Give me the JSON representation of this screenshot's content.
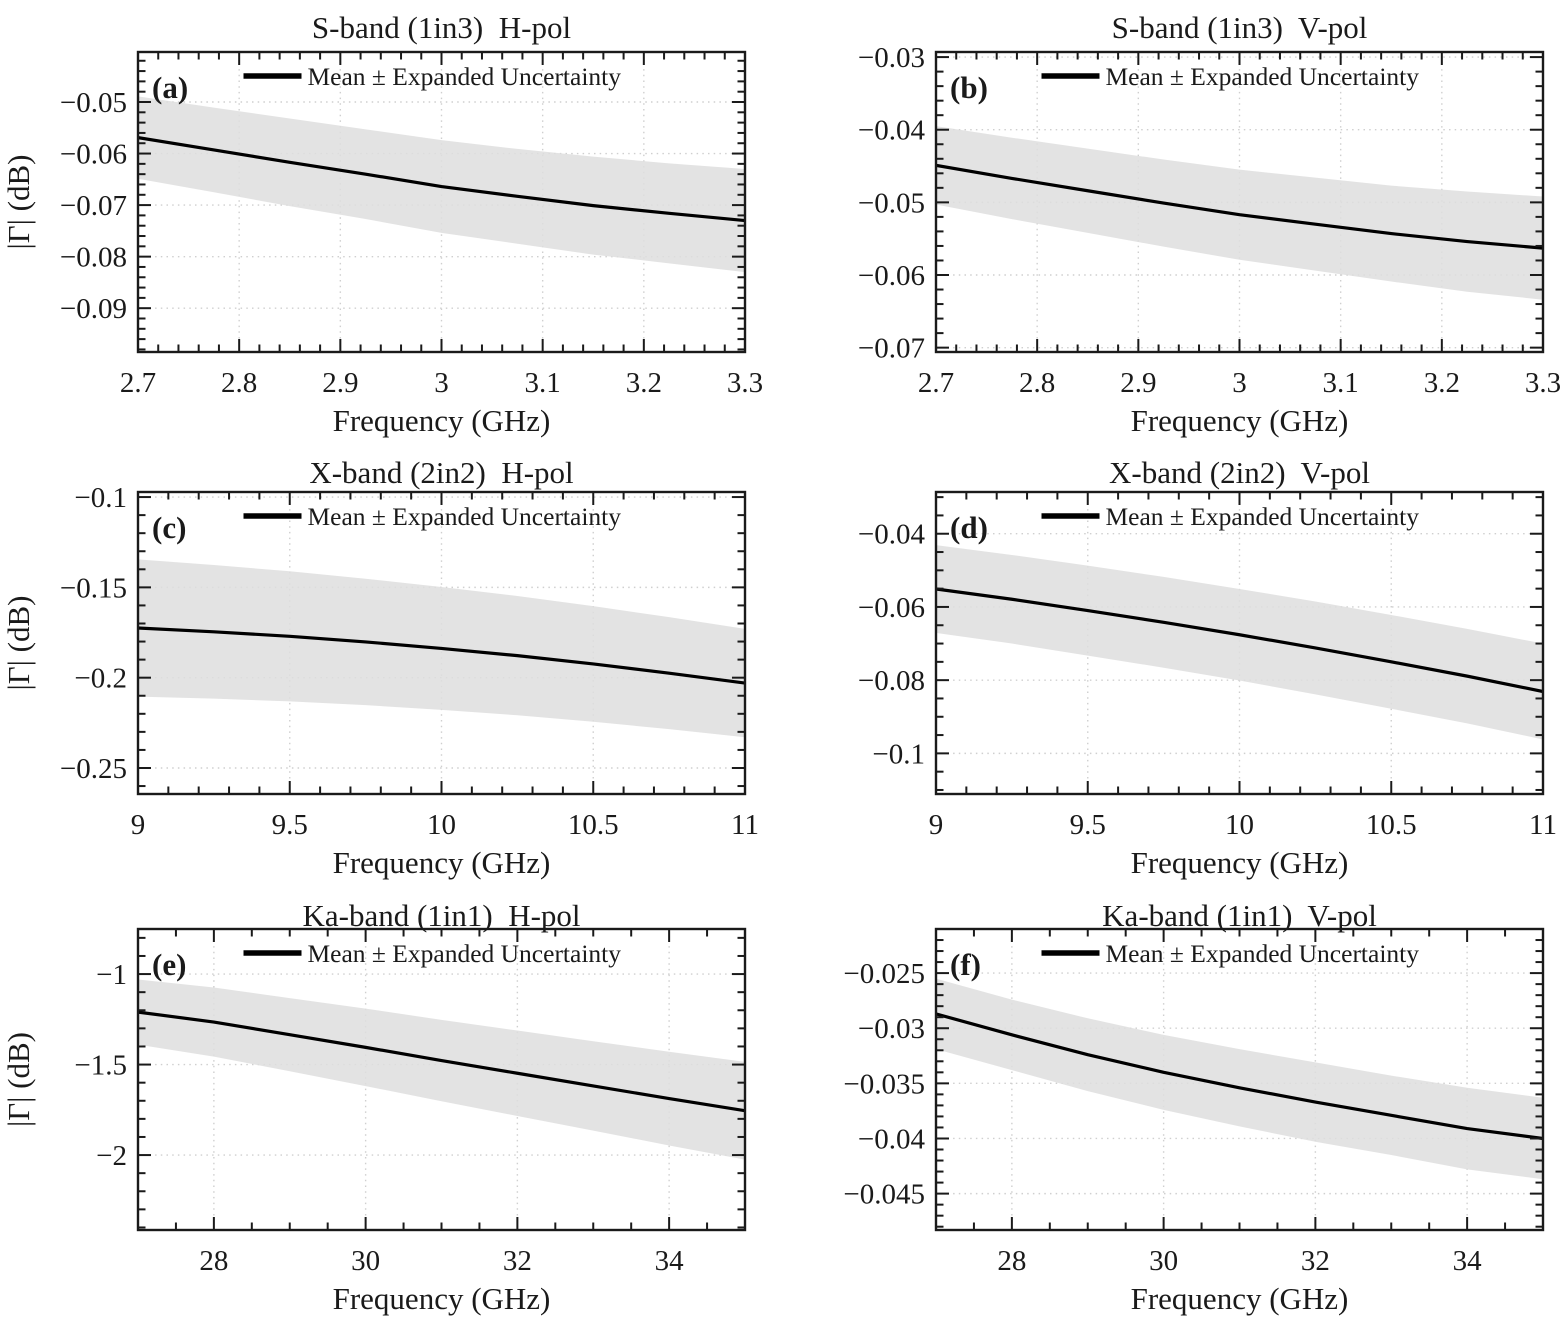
{
  "figure": {
    "description": "Six-panel measurement figure: reflection magnitude mean with expanded uncertainty band versus frequency",
    "legend_label": "Mean ± Expanded Uncertainty",
    "xlabel": "Frequency (GHz)",
    "ylabel": "|Γ| (dB)",
    "colors": {
      "mean_line": "#000000",
      "uncertainty_band": "#dedede",
      "grid": "#cfcfcf",
      "axis": "#1a1a1a",
      "background": "#ffffff"
    }
  },
  "chart_data": [
    {
      "id": "a",
      "type": "line",
      "panel_label": "(a)",
      "title": "S-band (1in3)  H-pol",
      "xlabel": "Frequency (GHz)",
      "ylabel": "|Γ| (dB)",
      "legend": "Mean ± Expanded Uncertainty",
      "grid": true,
      "legend_position": "north-inside-no-box",
      "xlim": [
        2.7,
        3.3
      ],
      "ylim": [
        -0.0985,
        -0.0403
      ],
      "xtick_values": [
        2.7,
        2.8,
        2.9,
        3,
        3.1,
        3.2,
        3.3
      ],
      "xtick_labels": [
        "2.7",
        "2.8",
        "2.9",
        "3",
        "3.1",
        "3.2",
        "3.3"
      ],
      "ytick_values": [
        -0.05,
        -0.06,
        -0.07,
        -0.08,
        -0.09
      ],
      "ytick_labels": [
        "−0.05",
        "−0.06",
        "−0.07",
        "−0.08",
        "−0.09"
      ],
      "x_minor_step": 0.02,
      "y_minor_step": 0.002,
      "x": [
        2.7,
        2.775,
        2.85,
        2.925,
        3.0,
        3.075,
        3.15,
        3.225,
        3.3
      ],
      "mean": [
        -0.0569,
        -0.0593,
        -0.0617,
        -0.064,
        -0.0664,
        -0.0683,
        -0.0701,
        -0.0716,
        -0.073
      ],
      "upper": [
        -0.0489,
        -0.0511,
        -0.0532,
        -0.0553,
        -0.0574,
        -0.0591,
        -0.0606,
        -0.0619,
        -0.063
      ],
      "lower": [
        -0.0649,
        -0.0675,
        -0.0702,
        -0.0727,
        -0.0754,
        -0.0775,
        -0.0796,
        -0.0813,
        -0.083
      ]
    },
    {
      "id": "b",
      "type": "line",
      "panel_label": "(b)",
      "title": "S-band (1in3)  V-pol",
      "xlabel": "Frequency (GHz)",
      "ylabel": null,
      "legend": "Mean ± Expanded Uncertainty",
      "grid": true,
      "legend_position": "north-inside-no-box",
      "xlim": [
        2.7,
        3.3
      ],
      "ylim": [
        -0.0706,
        -0.0293
      ],
      "xtick_values": [
        2.7,
        2.8,
        2.9,
        3,
        3.1,
        3.2,
        3.3
      ],
      "xtick_labels": [
        "2.7",
        "2.8",
        "2.9",
        "3",
        "3.1",
        "3.2",
        "3.3"
      ],
      "ytick_values": [
        -0.03,
        -0.04,
        -0.05,
        -0.06,
        -0.07
      ],
      "ytick_labels": [
        "−0.03",
        "−0.04",
        "−0.05",
        "−0.06",
        "−0.07"
      ],
      "x_minor_step": 0.02,
      "y_minor_step": 0.002,
      "x": [
        2.7,
        2.775,
        2.85,
        2.925,
        3.0,
        3.075,
        3.15,
        3.225,
        3.3
      ],
      "mean": [
        -0.0449,
        -0.0467,
        -0.0484,
        -0.0501,
        -0.0517,
        -0.053,
        -0.0543,
        -0.0554,
        -0.0563
      ],
      "upper": [
        -0.0395,
        -0.0411,
        -0.0426,
        -0.0441,
        -0.0455,
        -0.0466,
        -0.0477,
        -0.0485,
        -0.0492
      ],
      "lower": [
        -0.0503,
        -0.0523,
        -0.0542,
        -0.0561,
        -0.0579,
        -0.0594,
        -0.0609,
        -0.0623,
        -0.0634
      ]
    },
    {
      "id": "c",
      "type": "line",
      "panel_label": "(c)",
      "title": "X-band (2in2)  H-pol",
      "xlabel": "Frequency (GHz)",
      "ylabel": "|Γ| (dB)",
      "legend": "Mean ± Expanded Uncertainty",
      "grid": true,
      "legend_position": "north-inside-no-box",
      "xlim": [
        9,
        11
      ],
      "ylim": [
        -0.2644,
        -0.0972
      ],
      "xtick_values": [
        9,
        9.5,
        10,
        10.5,
        11
      ],
      "xtick_labels": [
        "9",
        "9.5",
        "10",
        "10.5",
        "11"
      ],
      "ytick_values": [
        -0.1,
        -0.15,
        -0.2,
        -0.25
      ],
      "ytick_labels": [
        "−0.1",
        "−0.15",
        "−0.2",
        "−0.25"
      ],
      "x_minor_step": 0.1,
      "y_minor_step": 0.01,
      "x": [
        9,
        9.25,
        9.5,
        9.75,
        10,
        10.25,
        10.5,
        10.75,
        11
      ],
      "mean": [
        -0.1725,
        -0.1746,
        -0.1771,
        -0.1802,
        -0.1838,
        -0.1878,
        -0.1924,
        -0.1975,
        -0.203
      ],
      "upper": [
        -0.1345,
        -0.1376,
        -0.1411,
        -0.1452,
        -0.1498,
        -0.1548,
        -0.1604,
        -0.1665,
        -0.173
      ],
      "lower": [
        -0.2105,
        -0.2116,
        -0.2131,
        -0.2152,
        -0.2178,
        -0.2208,
        -0.2244,
        -0.2285,
        -0.233
      ]
    },
    {
      "id": "d",
      "type": "line",
      "panel_label": "(d)",
      "title": "X-band (2in2)  V-pol",
      "xlabel": "Frequency (GHz)",
      "ylabel": null,
      "legend": "Mean ± Expanded Uncertainty",
      "grid": true,
      "legend_position": "north-inside-no-box",
      "xlim": [
        9,
        11
      ],
      "ylim": [
        -0.1111,
        -0.0286
      ],
      "xtick_values": [
        9,
        9.5,
        10,
        10.5,
        11
      ],
      "xtick_labels": [
        "9",
        "9.5",
        "10",
        "10.5",
        "11"
      ],
      "ytick_values": [
        -0.04,
        -0.06,
        -0.08,
        -0.1
      ],
      "ytick_labels": [
        "−0.04",
        "−0.06",
        "−0.08",
        "−0.1"
      ],
      "x_minor_step": 0.1,
      "y_minor_step": 0.005,
      "x": [
        9,
        9.25,
        9.5,
        9.75,
        10,
        10.25,
        10.5,
        10.75,
        11
      ],
      "mean": [
        -0.0551,
        -0.0579,
        -0.061,
        -0.0642,
        -0.0676,
        -0.0712,
        -0.075,
        -0.0789,
        -0.0831
      ],
      "upper": [
        -0.0431,
        -0.0458,
        -0.0487,
        -0.0518,
        -0.0551,
        -0.0585,
        -0.0622,
        -0.066,
        -0.07
      ],
      "lower": [
        -0.0671,
        -0.07,
        -0.0733,
        -0.0766,
        -0.0801,
        -0.0839,
        -0.0878,
        -0.0918,
        -0.0962
      ]
    },
    {
      "id": "e",
      "type": "line",
      "panel_label": "(e)",
      "title": "Ka-band (1in1)  H-pol",
      "xlabel": "Frequency (GHz)",
      "ylabel": "|Γ| (dB)",
      "legend": "Mean ± Expanded Uncertainty",
      "grid": true,
      "legend_position": "north-inside-no-box",
      "xlim": [
        27,
        35
      ],
      "ylim": [
        -2.414,
        -0.751
      ],
      "xtick_values": [
        28,
        30,
        32,
        34
      ],
      "xtick_labels": [
        "28",
        "30",
        "32",
        "34"
      ],
      "ytick_values": [
        -1,
        -1.5,
        -2
      ],
      "ytick_labels": [
        "−1",
        "−1.5",
        "−2"
      ],
      "x_minor_step": 0.5,
      "y_minor_step": 0.1,
      "x": [
        27,
        28,
        29,
        30,
        31,
        32,
        33,
        34,
        35
      ],
      "mean": [
        -1.21,
        -1.265,
        -1.335,
        -1.405,
        -1.478,
        -1.548,
        -1.618,
        -1.688,
        -1.755
      ],
      "upper": [
        -1.03,
        -1.074,
        -1.133,
        -1.191,
        -1.253,
        -1.312,
        -1.371,
        -1.429,
        -1.485
      ],
      "lower": [
        -1.39,
        -1.456,
        -1.537,
        -1.619,
        -1.703,
        -1.784,
        -1.865,
        -1.947,
        -2.025
      ]
    },
    {
      "id": "f",
      "type": "line",
      "panel_label": "(f)",
      "title": "Ka-band (1in1)  V-pol",
      "xlabel": "Frequency (GHz)",
      "ylabel": null,
      "legend": "Mean ± Expanded Uncertainty",
      "grid": true,
      "legend_position": "north-inside-no-box",
      "xlim": [
        27,
        35
      ],
      "ylim": [
        -0.0483,
        -0.021
      ],
      "xtick_values": [
        28,
        30,
        32,
        34
      ],
      "xtick_labels": [
        "28",
        "30",
        "32",
        "34"
      ],
      "ytick_values": [
        -0.025,
        -0.03,
        -0.035,
        -0.04,
        -0.045
      ],
      "ytick_labels": [
        "−0.025",
        "−0.03",
        "−0.035",
        "−0.04",
        "−0.045"
      ],
      "x_minor_step": 0.5,
      "y_minor_step": 0.001,
      "x": [
        27,
        28,
        29,
        30,
        31,
        32,
        33,
        34,
        35
      ],
      "mean": [
        -0.0287,
        -0.0306,
        -0.0324,
        -0.034,
        -0.0354,
        -0.0367,
        -0.0379,
        -0.0391,
        -0.04
      ],
      "upper": [
        -0.0255,
        -0.0274,
        -0.0291,
        -0.0306,
        -0.0319,
        -0.0331,
        -0.0343,
        -0.0354,
        -0.0363
      ],
      "lower": [
        -0.0319,
        -0.0338,
        -0.0357,
        -0.0374,
        -0.0389,
        -0.0403,
        -0.0415,
        -0.0428,
        -0.0437
      ]
    }
  ]
}
